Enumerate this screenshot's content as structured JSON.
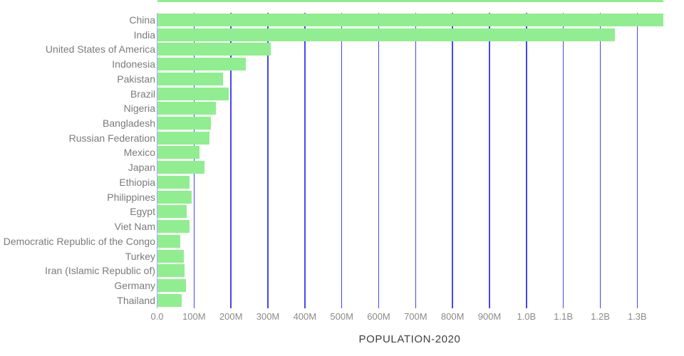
{
  "chart_data": {
    "type": "bar",
    "orientation": "horizontal",
    "title": "POPULATION-2020",
    "xlabel": "POPULATION-2020",
    "ylabel": "",
    "categories": [
      "China",
      "India",
      "United States of America",
      "Indonesia",
      "Pakistan",
      "Brazil",
      "Nigeria",
      "Bangladesh",
      "Russian Federation",
      "Mexico",
      "Japan",
      "Ethiopia",
      "Philippines",
      "Egypt",
      "Viet Nam",
      "Democratic Republic of the Congo",
      "Turkey",
      "Iran (Islamic Republic of)",
      "Germany",
      "Thailand"
    ],
    "values_millions": [
      1370,
      1239,
      308,
      241,
      178,
      193,
      159,
      145,
      142,
      114,
      129,
      87,
      94,
      81,
      88,
      62,
      73,
      74,
      78,
      66
    ],
    "x_ticks": [
      "0.0",
      "100M",
      "200M",
      "300M",
      "400M",
      "500M",
      "600M",
      "700M",
      "800M",
      "900M",
      "1.0B",
      "1.1B",
      "1.2B",
      "1.3B"
    ],
    "x_tick_step_millions": 100,
    "xlim_millions": [
      0,
      1427
    ],
    "grid": "vertical-only",
    "legend": "none",
    "clipped_partial_bar_at_top_value_millions": 1370,
    "colors": {
      "bar_fill": "#90ee90",
      "gridline": "#4646f0",
      "zero_axis_line": "#a9a9f4",
      "category_label_text": "#7b7b7b",
      "tick_label_text": "#8a8a8a",
      "axis_title_text": "#3f3f3f",
      "background": "#ffffff"
    }
  }
}
